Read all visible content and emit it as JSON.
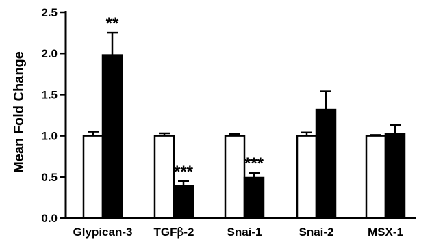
{
  "chart_data": {
    "type": "bar",
    "ylabel": "Mean Fold Change",
    "ylim": [
      0,
      2.5
    ],
    "yticks": [
      "0.0",
      "0.5",
      "1.0",
      "1.5",
      "2.0",
      "2.5"
    ],
    "categories": [
      {
        "label": "Glypican-3",
        "prefix": "Glypican-3",
        "greek": "",
        "suffix": ""
      },
      {
        "label": "TGFβ-2",
        "prefix": "TGF",
        "greek": "β",
        "suffix": "-2"
      },
      {
        "label": "Snai-1",
        "prefix": "Snai-1",
        "greek": "",
        "suffix": ""
      },
      {
        "label": "Snai-2",
        "prefix": "Snai-2",
        "greek": "",
        "suffix": ""
      },
      {
        "label": "MSX-1",
        "prefix": "MSX-1",
        "greek": "",
        "suffix": ""
      }
    ],
    "series": [
      {
        "fill": "#ffffff",
        "values": [
          1.0,
          1.0,
          1.0,
          1.0,
          1.0
        ],
        "errors": [
          0.05,
          0.03,
          0.02,
          0.04,
          0.01
        ]
      },
      {
        "fill": "#000000",
        "values": [
          1.98,
          0.39,
          0.49,
          1.32,
          1.02
        ],
        "errors": [
          0.27,
          0.06,
          0.06,
          0.22,
          0.11
        ]
      }
    ],
    "significance": [
      "**",
      "***",
      "***",
      "",
      ""
    ],
    "grid": false,
    "legend": "none"
  }
}
